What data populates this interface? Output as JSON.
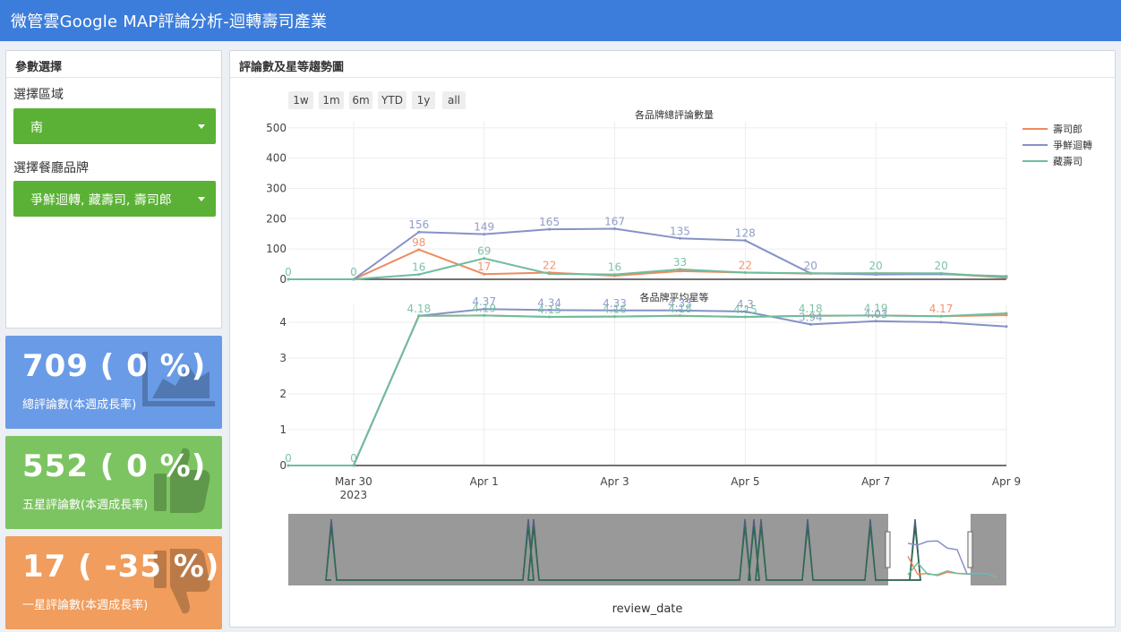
{
  "header": {
    "title": "微管雲Google MAP評論分析-迴轉壽司產業"
  },
  "params": {
    "box_title": "參數選擇",
    "region_label": "選擇區域",
    "region_value": "南",
    "brand_label": "選擇餐廳品牌",
    "brand_value": "爭鮮迴轉, 藏壽司, 壽司郎"
  },
  "stats": [
    {
      "value": "709 ( 0 %)",
      "label": "總評論數(本週成長率)",
      "color": "#6a9be6",
      "icon": "area-chart-icon"
    },
    {
      "value": "552 ( 0 %)",
      "label": "五星評論數(本週成長率)",
      "color": "#7cc461",
      "icon": "thumbs-up-icon"
    },
    {
      "value": "17 ( -35 %)",
      "label": "一星評論數(本週成長率)",
      "color": "#f09d5d",
      "icon": "thumbs-down-icon"
    }
  ],
  "chart_panel": {
    "title": "評論數及星等趨勢圖",
    "range_buttons": [
      "1w",
      "1m",
      "6m",
      "YTD",
      "1y",
      "all"
    ],
    "xaxis_title": "review_date"
  },
  "chart_data": [
    {
      "type": "line",
      "title": "各品牌總評論數量",
      "x": [
        "2023-03-29",
        "2023-03-30",
        "2023-03-31",
        "2023-04-01",
        "2023-04-02",
        "2023-04-03",
        "2023-04-04",
        "2023-04-05",
        "2023-04-06",
        "2023-04-07",
        "2023-04-08",
        "2023-04-09"
      ],
      "x_tick_labels": [
        "Mar 30\n2023",
        "Apr 1",
        "Apr 3",
        "Apr 5",
        "Apr 7",
        "Apr 9"
      ],
      "ylim": [
        0,
        520
      ],
      "y_ticks": [
        0,
        100,
        200,
        300,
        400,
        500
      ],
      "grid": true,
      "legend_position": "top-right",
      "series": [
        {
          "name": "壽司郎",
          "color": "#f08a5d",
          "values": [
            0,
            0,
            98,
            17,
            22,
            12,
            27,
            22,
            19,
            20,
            19,
            5
          ]
        },
        {
          "name": "爭鮮迴轉",
          "color": "#8592c6",
          "values": [
            0,
            0,
            156,
            149,
            165,
            167,
            135,
            128,
            20,
            16,
            17,
            10
          ]
        },
        {
          "name": "藏壽司",
          "color": "#6fbd9c",
          "values": [
            0,
            0,
            16,
            69,
            18,
            16,
            33,
            22,
            20,
            20,
            20,
            7
          ]
        }
      ]
    },
    {
      "type": "line",
      "title": "各品牌平均星等",
      "x": [
        "2023-03-29",
        "2023-03-30",
        "2023-03-31",
        "2023-04-01",
        "2023-04-02",
        "2023-04-03",
        "2023-04-04",
        "2023-04-05",
        "2023-04-06",
        "2023-04-07",
        "2023-04-08",
        "2023-04-09"
      ],
      "ylim": [
        0,
        4.5
      ],
      "y_ticks": [
        0,
        1,
        2,
        3,
        4
      ],
      "grid": true,
      "series": [
        {
          "name": "壽司郎",
          "color": "#f08a5d",
          "values": [
            0,
            0,
            4.18,
            4.19,
            4.15,
            4.16,
            4.18,
            4.15,
            4.18,
            4.19,
            4.17,
            4.2
          ]
        },
        {
          "name": "爭鮮迴轉",
          "color": "#8592c6",
          "values": [
            0,
            0,
            4.18,
            4.37,
            4.34,
            4.33,
            4.33,
            4.3,
            3.94,
            4.03,
            4.0,
            3.88
          ]
        },
        {
          "name": "藏壽司",
          "color": "#6fbd9c",
          "values": [
            0,
            0,
            4.18,
            4.19,
            4.15,
            4.16,
            4.18,
            4.15,
            4.18,
            4.19,
            4.17,
            4.25
          ]
        }
      ]
    }
  ],
  "point_label_texts": {
    "top": [
      [
        "",
        "",
        "98",
        "17",
        "22",
        "",
        "",
        "22",
        "",
        "",
        "",
        ""
      ],
      [
        "",
        "",
        "156",
        "149",
        "165",
        "167",
        "135",
        "128",
        "20",
        "",
        "",
        ""
      ],
      [
        "0",
        "0",
        "16",
        "69",
        "",
        "16",
        "33",
        "",
        "",
        "20",
        "20",
        ""
      ]
    ],
    "bottom": [
      [
        "",
        "",
        "",
        "",
        "",
        "",
        "",
        "",
        "",
        "",
        "4.17",
        ""
      ],
      [
        "",
        "",
        "",
        "4.37",
        "4.34",
        "4.33",
        "4.33",
        "4.3",
        "3.94",
        "4.03",
        "",
        ""
      ],
      [
        "0",
        "0",
        "4.18",
        "4.19",
        "4.15",
        "4.16",
        "4.18",
        "4.15",
        "4.18",
        "4.19",
        "",
        ""
      ]
    ]
  }
}
